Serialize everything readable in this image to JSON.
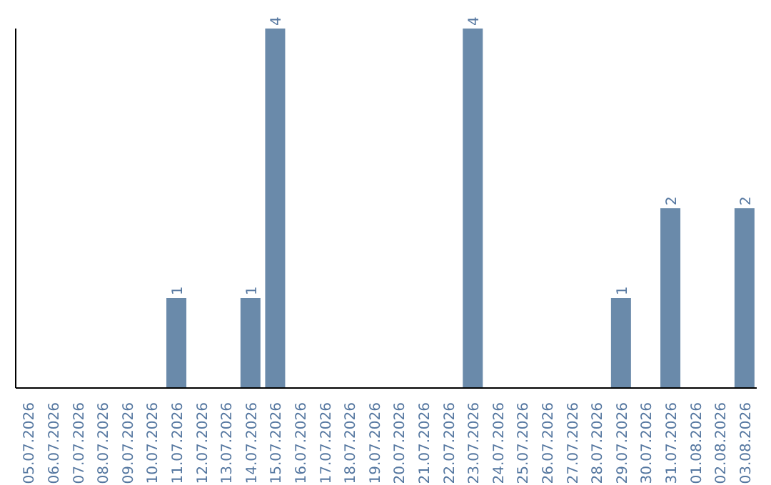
{
  "chart_data": {
    "type": "bar",
    "categories": [
      "05.07.2026",
      "06.07.2026",
      "07.07.2026",
      "08.07.2026",
      "09.07.2026",
      "10.07.2026",
      "11.07.2026",
      "12.07.2026",
      "13.07.2026",
      "14.07.2026",
      "15.07.2026",
      "16.07.2026",
      "17.07.2026",
      "18.07.2026",
      "19.07.2026",
      "20.07.2026",
      "21.07.2026",
      "22.07.2026",
      "23.07.2026",
      "24.07.2026",
      "25.07.2026",
      "26.07.2026",
      "27.07.2026",
      "28.07.2026",
      "29.07.2026",
      "30.07.2026",
      "31.07.2026",
      "01.08.2026",
      "02.08.2026",
      "03.08.2026"
    ],
    "values": [
      0,
      0,
      0,
      0,
      0,
      0,
      1,
      0,
      0,
      1,
      4,
      0,
      0,
      0,
      0,
      0,
      0,
      0,
      4,
      0,
      0,
      0,
      0,
      0,
      1,
      0,
      2,
      0,
      0,
      2
    ],
    "value_labels": [
      null,
      null,
      null,
      null,
      null,
      null,
      "1",
      null,
      null,
      "1",
      "4",
      null,
      null,
      null,
      null,
      null,
      null,
      null,
      "4",
      null,
      null,
      null,
      null,
      null,
      "1",
      null,
      "2",
      null,
      null,
      "2"
    ],
    "color": "#6a8aaa",
    "grid": false,
    "legend": false
  }
}
